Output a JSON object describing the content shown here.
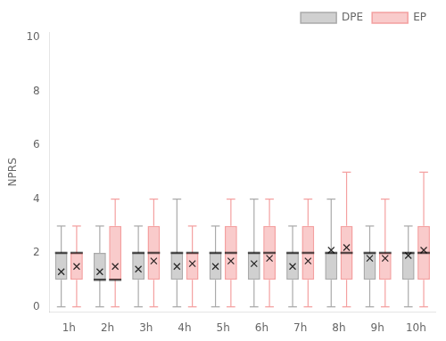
{
  "chart_data": {
    "type": "box",
    "ylabel": "NPRS",
    "categories": [
      "1h",
      "2h",
      "3h",
      "4h",
      "5h",
      "6h",
      "7h",
      "8h",
      "9h",
      "10h"
    ],
    "series": [
      {
        "name": "DPE",
        "color": "#aaaaaa",
        "p5": [
          0.0,
          0.0,
          0.0,
          0.0,
          0.0,
          0.0,
          0.0,
          0.0,
          0.0,
          0.0
        ],
        "q25": [
          1.0,
          1.0,
          1.0,
          1.0,
          1.0,
          1.0,
          1.0,
          1.0,
          1.0,
          1.0
        ],
        "median": [
          2.0,
          1.0,
          2.0,
          2.0,
          2.0,
          2.0,
          2.0,
          2.0,
          2.0,
          2.0
        ],
        "q75": [
          2.0,
          2.0,
          2.0,
          2.0,
          2.0,
          2.0,
          2.0,
          2.0,
          2.0,
          2.0
        ],
        "p95": [
          3.0,
          3.0,
          3.0,
          4.0,
          3.0,
          4.0,
          3.0,
          4.0,
          3.0,
          3.0
        ],
        "mean": [
          1.3,
          1.3,
          1.4,
          1.5,
          1.5,
          1.6,
          1.5,
          2.1,
          1.8,
          1.9
        ]
      },
      {
        "name": "EP",
        "color": "#F4A0A0",
        "p5": [
          0.0,
          0.0,
          0.0,
          0.0,
          0.0,
          0.0,
          0.0,
          0.0,
          0.0,
          0.0
        ],
        "q25": [
          1.0,
          1.0,
          1.0,
          1.0,
          1.0,
          1.0,
          1.0,
          1.0,
          1.0,
          1.0
        ],
        "median": [
          2.0,
          1.0,
          2.0,
          2.0,
          2.0,
          2.0,
          2.0,
          2.0,
          2.0,
          2.0
        ],
        "q75": [
          2.0,
          3.0,
          3.0,
          2.0,
          3.0,
          3.0,
          3.0,
          3.0,
          2.0,
          3.0
        ],
        "p95": [
          3.0,
          4.0,
          4.0,
          3.0,
          4.0,
          4.0,
          4.0,
          5.0,
          4.0,
          5.0
        ],
        "mean": [
          1.5,
          1.5,
          1.7,
          1.6,
          1.7,
          1.8,
          1.7,
          2.2,
          1.8,
          2.1
        ]
      }
    ],
    "ylim": [
      -0.2,
      10.2
    ],
    "yticks": [
      0,
      2,
      4,
      6,
      8,
      10
    ],
    "grid": false,
    "legend": "upper right"
  }
}
